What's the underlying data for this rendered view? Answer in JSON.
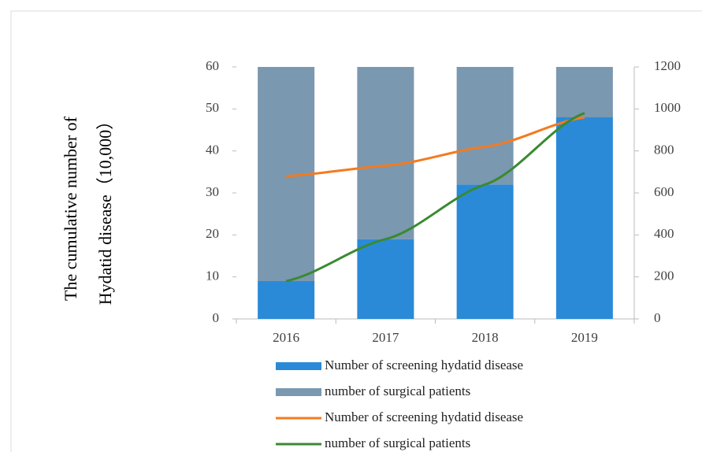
{
  "chart_data": {
    "type": "bar",
    "stacked": true,
    "y_label": [
      "The  cumulative  number  of",
      "Hydatid disease（10,000）"
    ],
    "categories": [
      "2016",
      "2017",
      "2018",
      "2019"
    ],
    "series": [
      {
        "name": "Number of screening hydatid disease",
        "type": "bar",
        "color": "#2a8ad8",
        "values": [
          9,
          19,
          32,
          48
        ]
      },
      {
        "name": "number of surgical patients",
        "type": "bar",
        "color": "#7a98b0",
        "values": [
          51,
          41,
          28,
          12
        ]
      },
      {
        "name": "Number of screening hydatid disease",
        "type": "line",
        "axis": "y2",
        "color": "#f47a20",
        "values": [
          680,
          730,
          820,
          960
        ]
      },
      {
        "name": "number of surgical patients",
        "type": "line",
        "axis": "y2",
        "color": "#3a8a30",
        "values": [
          180,
          380,
          640,
          980
        ]
      }
    ],
    "ylim": [
      0,
      60
    ],
    "yticks": [
      0,
      10,
      20,
      30,
      40,
      50,
      60
    ],
    "y2lim": [
      0,
      1200
    ],
    "y2ticks": [
      0,
      200,
      400,
      600,
      800,
      1000,
      1200
    ],
    "grid": false
  }
}
